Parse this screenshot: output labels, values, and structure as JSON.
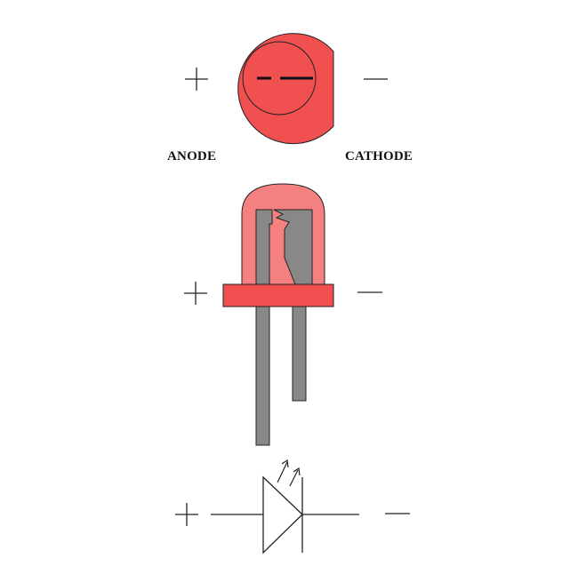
{
  "labels": {
    "anode": "ANODE",
    "cathode": "CATHODE"
  },
  "symbols": {
    "positive": "+",
    "negative": "−"
  },
  "colors": {
    "led_red": "#f05050",
    "led_dome": "#f48080",
    "lead_gray": "#888888",
    "outline": "#222222",
    "background": "#ffffff"
  },
  "views": [
    "top-view",
    "side-view",
    "schematic-symbol"
  ]
}
